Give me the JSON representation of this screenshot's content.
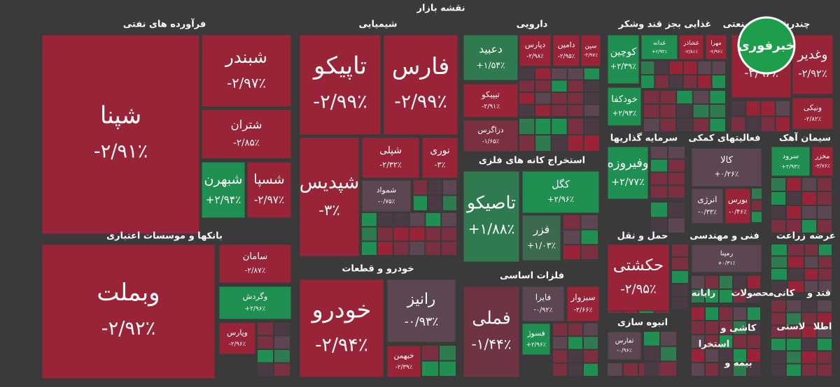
{
  "header": {
    "title": "نقشه بازار"
  },
  "logo": "خبرفوری",
  "sectors": [
    {
      "title": "فرآورده های نفتی",
      "tiles": [
        {
          "name": "شپنا",
          "change": "-۲/۹۱٪",
          "color": "#9a2437"
        },
        {
          "name": "شبندر",
          "change": "-۲/۹۷٪",
          "color": "#9a2437"
        },
        {
          "name": "شتران",
          "change": "-۲/۸۵٪",
          "color": "#9a2437"
        },
        {
          "name": "شبهرن",
          "change": "+۲/۹۴٪",
          "color": "#1f8f52"
        },
        {
          "name": "شسپا",
          "change": "-۲/۹۷٪",
          "color": "#9a2437"
        }
      ]
    },
    {
      "title": "بانکها و موسسات اعتباری",
      "tiles": [
        {
          "name": "وبملت",
          "change": "-۲/۹۲٪",
          "color": "#9a2437"
        },
        {
          "name": "سامان",
          "change": "-۲/۸۷٪",
          "color": "#9a2437"
        },
        {
          "name": "وگردش",
          "change": "+۲/۹۶٪",
          "color": "#1f8f52"
        },
        {
          "name": "وپارس",
          "change": "-۲/۹۶٪",
          "color": "#9a2437"
        }
      ]
    },
    {
      "title": "شیمیایی",
      "tiles": [
        {
          "name": "تاپیکو",
          "change": "-۲/۹۹٪",
          "color": "#9a2437"
        },
        {
          "name": "فارس",
          "change": "-۲/۹۹٪",
          "color": "#9a2437"
        },
        {
          "name": "شپدیس",
          "change": "-۳٪",
          "color": "#9a2437"
        },
        {
          "name": "شپلی",
          "change": "-۲/۳۲٪",
          "color": "#9a2437"
        },
        {
          "name": "نوری",
          "change": "-۳٪",
          "color": "#9a2437"
        },
        {
          "name": "شمواد",
          "change": "-۰/۷۵٪",
          "color": "#5b4652"
        }
      ]
    },
    {
      "title": "خودرو و قطعات",
      "tiles": [
        {
          "name": "خودرو",
          "change": "-۲/۹۴٪",
          "color": "#9a2437"
        },
        {
          "name": "رانیز",
          "change": "-۰/۹۳٪",
          "color": "#5b4652"
        },
        {
          "name": "خبهمن",
          "change": "-۲/۳۹٪",
          "color": "#9a2437"
        }
      ]
    },
    {
      "title": "دارویی",
      "tiles": [
        {
          "name": "دعبید",
          "change": "+۱/۵۴٪",
          "color": "#2f7a4f"
        },
        {
          "name": "دپارس",
          "change": "-۲/۹۸٪",
          "color": "#9a2437"
        },
        {
          "name": "دامین",
          "change": "-۲/۹۵٪",
          "color": "#9a2437"
        },
        {
          "name": "سپن",
          "change": "-۲/۹۷٪",
          "color": "#9a2437"
        },
        {
          "name": "تیپیکو",
          "change": "-۲/۹۱٪",
          "color": "#9a2437"
        },
        {
          "name": "دزاگرس",
          "change": "-۱/۶۵٪",
          "color": "#7a3040"
        }
      ]
    },
    {
      "title": "استخراج کانه های فلزی",
      "tiles": [
        {
          "name": "تاصیکو",
          "change": "+۱/۸۸٪",
          "color": "#2f7a4f"
        },
        {
          "name": "کگل",
          "change": "+۲/۹۶٪",
          "color": "#1f8f52"
        },
        {
          "name": "فزر",
          "change": "+۱/۰۳٪",
          "color": "#3b6a4e"
        }
      ]
    },
    {
      "title": "فلزات اساسی",
      "tiles": [
        {
          "name": "فملی",
          "change": "-۱/۴۴٪",
          "color": "#6e3442"
        },
        {
          "name": "فایرا",
          "change": "-۰/۹۲٪",
          "color": "#5b4652"
        },
        {
          "name": "سبزوار",
          "change": "-۲/۶۶٪",
          "color": "#9a2437"
        },
        {
          "name": "فسوژ",
          "change": "+۲/۹۶٪",
          "color": "#1f8f52"
        }
      ]
    },
    {
      "title": "غذایی بجز قند وشکر",
      "tiles": [
        {
          "name": "کوچین",
          "change": "+۲/۳۹٪",
          "color": "#1f8f52"
        },
        {
          "name": "غدانه",
          "change": "+۲/۹۳٪",
          "color": "#1f8f52"
        },
        {
          "name": "غشاذر",
          "change": "-۲/۸۱٪",
          "color": "#9a2437"
        },
        {
          "name": "مهرا",
          "change": "-۲/۹۶٪",
          "color": "#9a2437"
        },
        {
          "name": "خودکفا",
          "change": "+۲/۹۳٪",
          "color": "#1f8f52"
        }
      ]
    },
    {
      "title": "چندرشته ای صنعتی",
      "tiles": [
        {
          "change": "-۲/۹۶٪",
          "color": "#9a2437"
        },
        {
          "name": "وغدیر",
          "change": "-۲/۹۲٪",
          "color": "#9a2437"
        },
        {
          "name": "ونیکی",
          "change": "-۲/۸۲٪",
          "color": "#9a2437"
        }
      ]
    },
    {
      "title": "سرمایه گذاریها",
      "tiles": [
        {
          "name": "وفیروزه",
          "change": "+۲/۷۷٪",
          "color": "#1f8f52"
        }
      ]
    },
    {
      "title": "فعالیتهای کمکی",
      "tiles": [
        {
          "name": "کالا",
          "change": "+۰/۲۶٪",
          "color": "#5b4652"
        },
        {
          "name": "انرژی",
          "change": "-۰/۳۳٪",
          "color": "#5b4652"
        },
        {
          "name": "بورس",
          "change": "-۰/۴۶٪",
          "color": "#9a2437"
        }
      ]
    },
    {
      "title": "سیمان آهک",
      "tiles": [
        {
          "name": "سرود",
          "change": "+۲/۹۳٪",
          "color": "#1f8f52"
        },
        {
          "name": "مخزر",
          "change": "-۲/۷۶٪",
          "color": "#9a2437"
        }
      ]
    },
    {
      "title": "حمل و نقل",
      "tiles": [
        {
          "name": "حکشتی",
          "change": "-۲/۹۵٪",
          "color": "#9a2437"
        }
      ]
    },
    {
      "title": "فنی و مهندسی",
      "tiles": [
        {
          "name": "رمپنا",
          "change": "+۰/۳۱٪",
          "color": "#5b4652"
        }
      ]
    },
    {
      "title": "انبوه سازی",
      "tiles": [
        {
          "name": "ثفارس",
          "change": "-۰/۹۶٪",
          "color": "#5b4652"
        }
      ]
    },
    {
      "title": "زراعت",
      "tiles": []
    },
    {
      "title": "عرضه",
      "tiles": []
    },
    {
      "title": "رایانه",
      "tiles": []
    },
    {
      "title": "محصولات",
      "tiles": []
    },
    {
      "title": "کانی",
      "tiles": []
    },
    {
      "title": "قند و",
      "tiles": []
    },
    {
      "title": "کاشی و",
      "tiles": []
    },
    {
      "title": "استخرا",
      "tiles": []
    },
    {
      "title": "بیمه و",
      "tiles": []
    },
    {
      "title": "اطلا",
      "tiles": []
    },
    {
      "title": "لاستی",
      "tiles": []
    }
  ]
}
